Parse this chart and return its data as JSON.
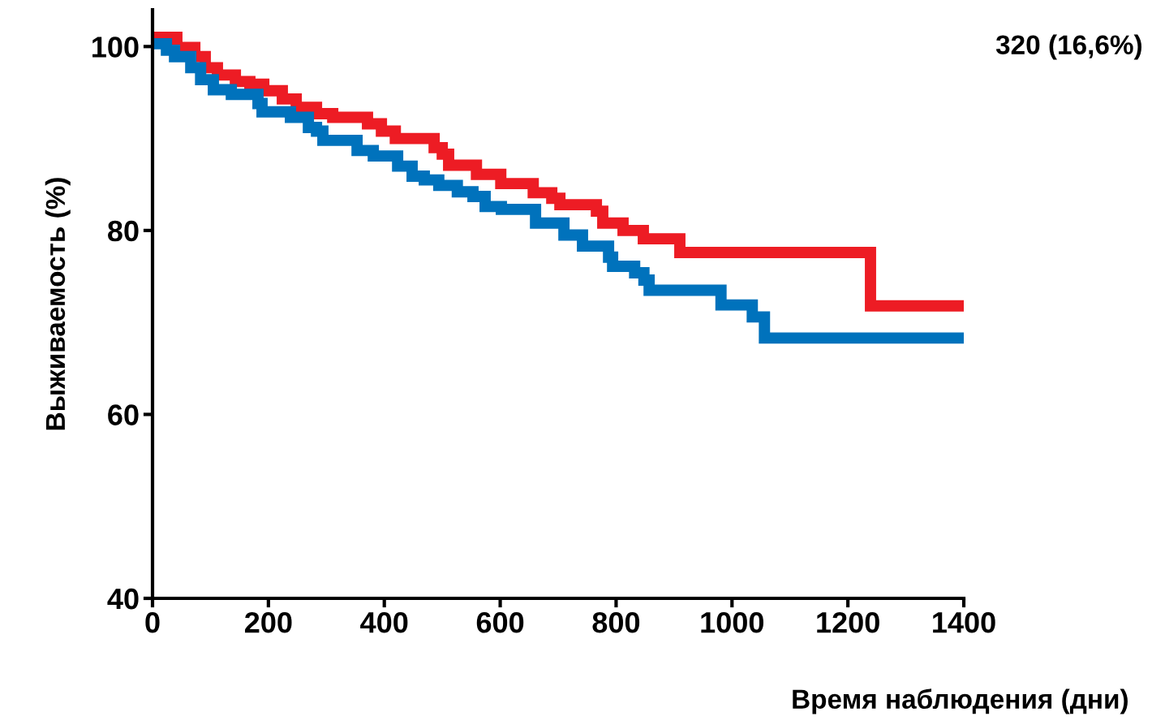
{
  "chart_data": {
    "type": "step",
    "xlabel": "Время наблюдения (дни)",
    "ylabel": "Выживаемость (%)",
    "annotations": [
      "320 (16,6%)"
    ],
    "xlim": [
      0,
      1400
    ],
    "xticks": [
      0,
      200,
      400,
      600,
      800,
      1000,
      1200,
      1400
    ],
    "ylim": [
      40,
      104
    ],
    "yticks": [
      40,
      60,
      80,
      100
    ],
    "grid": false,
    "line_style": "solid",
    "series": [
      {
        "color": "#ed1c24",
        "x": [
          0,
          42,
          73,
          91,
          112,
          143,
          168,
          192,
          224,
          248,
          283,
          311,
          371,
          395,
          419,
          486,
          500,
          511,
          559,
          601,
          657,
          689,
          703,
          766,
          777,
          812,
          847,
          910,
          1239,
          1396
        ],
        "values": [
          101.0,
          99.9,
          98.9,
          97.7,
          96.9,
          96.2,
          95.9,
          95.2,
          94.3,
          93.4,
          92.7,
          92.3,
          91.6,
          90.8,
          90.0,
          89.0,
          88.3,
          87.1,
          86.1,
          85.1,
          84.1,
          83.5,
          82.8,
          82.1,
          80.8,
          80.0,
          79.1,
          77.6,
          71.8,
          71.8
        ]
      },
      {
        "color": "#0072bc",
        "x": [
          0,
          24,
          38,
          66,
          83,
          105,
          136,
          182,
          189,
          238,
          269,
          283,
          294,
          353,
          381,
          423,
          448,
          469,
          494,
          526,
          553,
          574,
          602,
          661,
          710,
          742,
          787,
          794,
          832,
          848,
          857,
          981,
          1035,
          1056,
          1399
        ],
        "values": [
          100.3,
          99.6,
          98.9,
          97.7,
          96.4,
          95.3,
          94.8,
          93.8,
          92.9,
          92.3,
          91.2,
          90.8,
          89.8,
          88.7,
          88.1,
          87.0,
          85.9,
          85.5,
          84.9,
          84.2,
          83.7,
          82.6,
          82.3,
          80.8,
          79.5,
          78.3,
          77.1,
          76.1,
          75.4,
          74.6,
          73.5,
          71.9,
          70.6,
          68.3,
          68.3
        ]
      }
    ]
  }
}
